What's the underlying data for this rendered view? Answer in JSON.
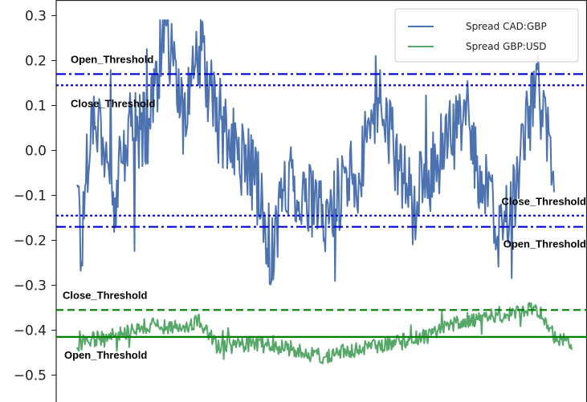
{
  "chart_data": {
    "type": "line",
    "title": "",
    "xlabel": "",
    "ylabel": "",
    "ylim": [
      -0.55,
      0.33
    ],
    "yticks": [
      0.3,
      0.2,
      0.1,
      0.0,
      -0.1,
      -0.2,
      -0.3,
      -0.4,
      -0.5
    ],
    "ytick_labels": [
      "0.3",
      "0.2",
      "0.1",
      "0.0",
      "−0.1",
      "−0.2",
      "−0.3",
      "−0.4",
      "−0.5"
    ],
    "grid": false,
    "legend": {
      "position": "top-right",
      "entries": [
        "Spread CAD:GBP",
        "Spread GBP:USD"
      ]
    },
    "series": [
      {
        "name": "Spread CAD:GBP",
        "color": "#4c72b0",
        "values_summary": "noisy series roughly between -0.45 and 0.29, centered near -0.02",
        "anchor_points": [
          [
            0,
            -0.03
          ],
          [
            5,
            -0.25
          ],
          [
            10,
            -0.03
          ],
          [
            20,
            0.1
          ],
          [
            30,
            0.03
          ],
          [
            40,
            -0.13
          ],
          [
            60,
            0.05
          ],
          [
            80,
            0.05
          ],
          [
            100,
            0.28
          ],
          [
            120,
            0.08
          ],
          [
            140,
            0.22
          ],
          [
            160,
            0.05
          ],
          [
            180,
            0.0
          ],
          [
            200,
            -0.05
          ],
          [
            220,
            -0.22
          ],
          [
            240,
            -0.05
          ],
          [
            260,
            -0.12
          ],
          [
            280,
            -0.15
          ],
          [
            300,
            -0.08
          ],
          [
            320,
            -0.05
          ],
          [
            340,
            0.12
          ],
          [
            360,
            0.0
          ],
          [
            380,
            -0.12
          ],
          [
            400,
            -0.05
          ],
          [
            420,
            0.03
          ],
          [
            440,
            0.08
          ],
          [
            460,
            -0.08
          ],
          [
            480,
            -0.2
          ],
          [
            500,
            -0.05
          ],
          [
            520,
            0.16
          ],
          [
            540,
            -0.05
          ]
        ]
      },
      {
        "name": "Spread GBP:USD",
        "color": "#55a868",
        "values_summary": "noisy series roughly between -0.52 and -0.33",
        "anchor_points": [
          [
            0,
            -0.43
          ],
          [
            40,
            -0.41
          ],
          [
            80,
            -0.39
          ],
          [
            120,
            -0.39
          ],
          [
            140,
            -0.38
          ],
          [
            160,
            -0.44
          ],
          [
            200,
            -0.43
          ],
          [
            240,
            -0.44
          ],
          [
            280,
            -0.46
          ],
          [
            320,
            -0.44
          ],
          [
            360,
            -0.43
          ],
          [
            400,
            -0.41
          ],
          [
            420,
            -0.39
          ],
          [
            460,
            -0.37
          ],
          [
            500,
            -0.36
          ],
          [
            520,
            -0.35
          ],
          [
            540,
            -0.41
          ],
          [
            560,
            -0.43
          ]
        ]
      }
    ],
    "threshold_lines": [
      {
        "label": "Open_Threshold",
        "value": 0.17,
        "color": "#0000dd",
        "style": "dashdot",
        "label_side": "left-above"
      },
      {
        "label": "Close_Threshold",
        "value": 0.145,
        "color": "#0000dd",
        "style": "dotted",
        "label_side": "left-below"
      },
      {
        "label": "Close_Threshold",
        "value": -0.145,
        "color": "#0000dd",
        "style": "dotted",
        "label_side": "right-above"
      },
      {
        "label": "Open_Threshold",
        "value": -0.17,
        "color": "#0000dd",
        "style": "dashdot",
        "label_side": "right-below"
      },
      {
        "label": "Close_Threshold",
        "value": -0.355,
        "color": "#008000",
        "style": "dashed",
        "label_side": "left-above"
      },
      {
        "label": "Open_Threshold",
        "value": -0.415,
        "color": "#008000",
        "style": "solid",
        "label_side": "left-below"
      }
    ]
  }
}
